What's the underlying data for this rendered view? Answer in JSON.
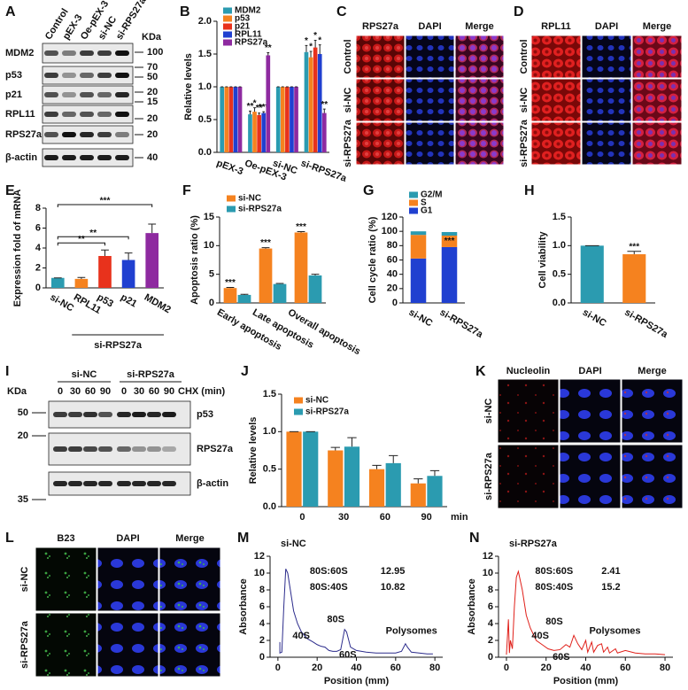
{
  "figure": {
    "panel_labels": [
      "A",
      "B",
      "C",
      "D",
      "E",
      "F",
      "G",
      "H",
      "I",
      "J",
      "K",
      "L",
      "M",
      "N"
    ],
    "A": {
      "columns": [
        "Control",
        "pEX-3",
        "Oe-pEX-3",
        "si-NC",
        "si-RPS27a"
      ],
      "unit": "KDa",
      "rows": [
        "MDM2",
        "p53",
        "p21",
        "RPL11",
        "RPS27a",
        "β-actin"
      ],
      "markers": [
        "100",
        "70",
        "50",
        "20",
        "15",
        "20",
        "20",
        "40"
      ]
    },
    "C": {
      "columns": [
        "RPS27a",
        "DAPI",
        "Merge"
      ],
      "rows": [
        "Control",
        "si-NC",
        "si-RPS27a"
      ]
    },
    "D": {
      "columns": [
        "RPL11",
        "DAPI",
        "Merge"
      ],
      "rows": [
        "Control",
        "si-NC",
        "si-RPS27a"
      ]
    },
    "I": {
      "groups": [
        "si-NC",
        "si-RPS27a"
      ],
      "times": [
        "0",
        "30",
        "60",
        "90",
        "0",
        "30",
        "60",
        "90"
      ],
      "time_label": "CHX (min)",
      "unit": "KDa",
      "rows": [
        "p53",
        "RPS27a",
        "β-actin"
      ],
      "markers": [
        "50",
        "20",
        "35"
      ]
    },
    "K": {
      "columns": [
        "Nucleolin",
        "DAPI",
        "Merge"
      ],
      "rows": [
        "si-NC",
        "si-RPS27a"
      ]
    },
    "L": {
      "columns": [
        "B23",
        "DAPI",
        "Merge"
      ],
      "rows": [
        "si-NC",
        "si-RPS27a"
      ]
    }
  },
  "chart_data": [
    {
      "type": "bar",
      "y_label": "Relative levels",
      "categories": [
        "pEX-3",
        "Oe-pEX-3",
        "si-NC",
        "si-RPS27a"
      ],
      "ylim": [
        0,
        2
      ],
      "yticks": [
        {
          "value": 0,
          "label": "0.0"
        },
        0.5,
        {
          "value": 1,
          "label": "1.0"
        },
        1.5,
        {
          "value": 2,
          "label": "2.0"
        }
      ],
      "legend": "upper left",
      "series": [
        {
          "name": "MDM2",
          "color": "#2b9bb0",
          "values": [
            1,
            0.58,
            1,
            1.53
          ],
          "errors": [
            0,
            0.05,
            0,
            0.1
          ],
          "significance": [
            null,
            "**",
            null,
            "*"
          ]
        },
        {
          "name": "p53",
          "color": "#f5821f",
          "values": [
            1,
            0.62,
            1,
            1.45
          ],
          "errors": [
            0,
            0.06,
            0,
            0.09
          ],
          "significance": [
            null,
            "*",
            null,
            "*"
          ]
        },
        {
          "name": "p21",
          "color": "#e8321c",
          "values": [
            1,
            0.57,
            1,
            1.6
          ],
          "errors": [
            0,
            0.03,
            0,
            0.11
          ],
          "significance": [
            null,
            "**",
            null,
            "*"
          ]
        },
        {
          "name": "RPL11",
          "color": "#2040d0",
          "values": [
            1,
            0.6,
            1,
            1.5
          ],
          "errors": [
            0,
            0.02,
            0,
            0.14
          ],
          "significance": [
            null,
            "***",
            null,
            "*"
          ]
        },
        {
          "name": "RPS27a",
          "color": "#8e2aa0",
          "values": [
            1,
            1.48,
            1,
            0.6
          ],
          "errors": [
            0,
            0.04,
            0,
            0.06
          ],
          "significance": [
            null,
            "**",
            null,
            "**"
          ]
        }
      ]
    },
    {
      "type": "bar",
      "y_label": "Expression fold of mRNA",
      "categories": [
        "si-NC",
        "RPL11",
        "p53",
        "p21",
        "MDM2"
      ],
      "values": [
        1,
        0.9,
        3.2,
        2.8,
        5.5
      ],
      "errors": [
        0,
        0.15,
        0.6,
        0.7,
        0.9
      ],
      "colors": [
        "#2b9bb0",
        "#f5821f",
        "#e8321c",
        "#2040d0",
        "#8e2aa0"
      ],
      "significance": [
        null,
        null,
        "**",
        "**",
        "***"
      ],
      "group_label": "si-RPS27a",
      "ylim": [
        0,
        8
      ],
      "yticks": [
        0,
        2,
        4,
        6,
        8
      ]
    },
    {
      "type": "bar",
      "y_label": "Apoptosis ratio (%)",
      "categories": [
        "Early apoptosis",
        "Late apoptosis",
        "Overall apoptosis"
      ],
      "ylim": [
        0,
        15
      ],
      "yticks": [
        0,
        5,
        10,
        15
      ],
      "legend": "upper left",
      "series": [
        {
          "name": "si-NC",
          "color": "#f5821f",
          "values": [
            2.6,
            9.5,
            12.3
          ],
          "errors": [
            0.1,
            0.15,
            0.15
          ],
          "significance": [
            "***",
            "***",
            "***"
          ]
        },
        {
          "name": "si-RPS27a",
          "color": "#2b9bb0",
          "values": [
            1.4,
            3.3,
            4.8
          ],
          "errors": [
            0.1,
            0.1,
            0.2
          ],
          "significance": [
            null,
            null,
            null
          ]
        }
      ]
    },
    {
      "type": "stacked_bar",
      "y_label": "Cell cycle ratio (%)",
      "categories": [
        "si-NC",
        "si-RPS27a"
      ],
      "ylim": [
        0,
        120
      ],
      "yticks": [
        0,
        20,
        40,
        60,
        80,
        100,
        120
      ],
      "legend": "upper left",
      "series": [
        {
          "name": "G1",
          "color": "#2040d0",
          "values": [
            62,
            78
          ],
          "significance": [
            null,
            null
          ]
        },
        {
          "name": "S",
          "color": "#f5821f",
          "values": [
            33,
            16
          ],
          "significance": [
            null,
            "***"
          ]
        },
        {
          "name": "G2/M",
          "color": "#2b9bb0",
          "values": [
            5,
            5
          ],
          "significance": [
            null,
            null
          ]
        }
      ]
    },
    {
      "type": "bar",
      "y_label": "Cell viability",
      "categories": [
        "si-NC",
        "si-RPS27a"
      ],
      "values": [
        1,
        0.85
      ],
      "errors": [
        0,
        0.05
      ],
      "colors": [
        "#2b9bb0",
        "#f5821f"
      ],
      "significance": [
        null,
        "***"
      ],
      "ylim": [
        0,
        1.5
      ],
      "yticks": [
        {
          "value": 0,
          "label": "0.0"
        },
        0.5,
        {
          "value": 1,
          "label": "1.0"
        },
        1.5
      ]
    },
    {
      "type": "bar",
      "y_label": "Relative levels",
      "x_label": "min",
      "categories": [
        "0",
        "30",
        "60",
        "90"
      ],
      "ylim": [
        0,
        1.5
      ],
      "yticks": [
        {
          "value": 0,
          "label": "0.0"
        },
        0.5,
        {
          "value": 1,
          "label": "1.0"
        },
        1.5
      ],
      "legend": "upper right",
      "series": [
        {
          "name": "si-NC",
          "color": "#f5821f",
          "values": [
            1,
            0.75,
            0.5,
            0.31
          ],
          "errors": [
            0,
            0.04,
            0.05,
            0.06
          ]
        },
        {
          "name": "si-RPS27a",
          "color": "#2b9bb0",
          "values": [
            1,
            0.8,
            0.58,
            0.41
          ],
          "errors": [
            0,
            0.12,
            0.1,
            0.07
          ]
        }
      ]
    },
    {
      "type": "line",
      "title": "si-NC",
      "x_label": "Position (mm)",
      "y_label": "Absorbance",
      "xlim": [
        -4,
        84
      ],
      "xticks": [
        0,
        20,
        40,
        60,
        80
      ],
      "ylim": [
        0,
        12
      ],
      "yticks": [
        0,
        2,
        4,
        6,
        8,
        10,
        12
      ],
      "annotations": [
        "80S:60S",
        "12.95",
        "80S:40S",
        "10.82",
        "40S",
        "80S",
        "60S",
        "Polysomes"
      ],
      "x": [
        1,
        1,
        2,
        3,
        4,
        5,
        6,
        8,
        10,
        12,
        15,
        18,
        20,
        22,
        24,
        26,
        28,
        30,
        32,
        34,
        35,
        37,
        40,
        45,
        50,
        55,
        60,
        63,
        65,
        66,
        68,
        72,
        76,
        79
      ],
      "series": [
        {
          "color": "#2c2c8c",
          "values": [
            1.8,
            0.5,
            0.6,
            6,
            10.5,
            10,
            8.5,
            5.5,
            4,
            3,
            2.2,
            1.8,
            1.5,
            1.3,
            1.2,
            0.8,
            0.7,
            0.7,
            0.9,
            3.3,
            3,
            1.2,
            0.8,
            0.6,
            0.5,
            0.5,
            0.5,
            0.7,
            1.6,
            1.2,
            0.6,
            0.5,
            0.4,
            0.4
          ]
        }
      ]
    },
    {
      "type": "line",
      "title": "si-RPS27a",
      "x_label": "Position (mm)",
      "y_label": "Absorbance",
      "xlim": [
        -4,
        84
      ],
      "xticks": [
        0,
        20,
        40,
        60,
        80
      ],
      "ylim": [
        0,
        12
      ],
      "yticks": [
        0,
        2,
        4,
        6,
        8,
        10,
        12
      ],
      "annotations": [
        "80S:60S",
        "2.41",
        "80S:40S",
        "15.2",
        "40S",
        "80S",
        "60S",
        "Polysomes"
      ],
      "x": [
        0,
        1,
        1.5,
        2,
        3,
        4,
        5,
        6,
        8,
        10,
        12,
        15,
        18,
        21,
        24,
        27,
        30,
        32,
        34,
        36,
        38,
        40,
        41,
        43,
        44,
        46,
        48,
        49,
        51,
        52,
        55,
        56,
        60,
        65,
        70,
        75,
        80
      ],
      "series": [
        {
          "color": "#e0201a",
          "values": [
            0.3,
            4.5,
            0.5,
            2,
            1,
            6,
            9.5,
            10.2,
            8,
            5,
            3.5,
            2,
            1.5,
            1,
            0.8,
            0.9,
            1.5,
            1.2,
            2.6,
            1.6,
            0.9,
            2,
            0.6,
            1.8,
            0.6,
            1.4,
            1.6,
            0.6,
            1.2,
            0.5,
            1,
            0.5,
            0.8,
            0.5,
            0.4,
            0.4,
            0.3
          ]
        }
      ]
    }
  ]
}
